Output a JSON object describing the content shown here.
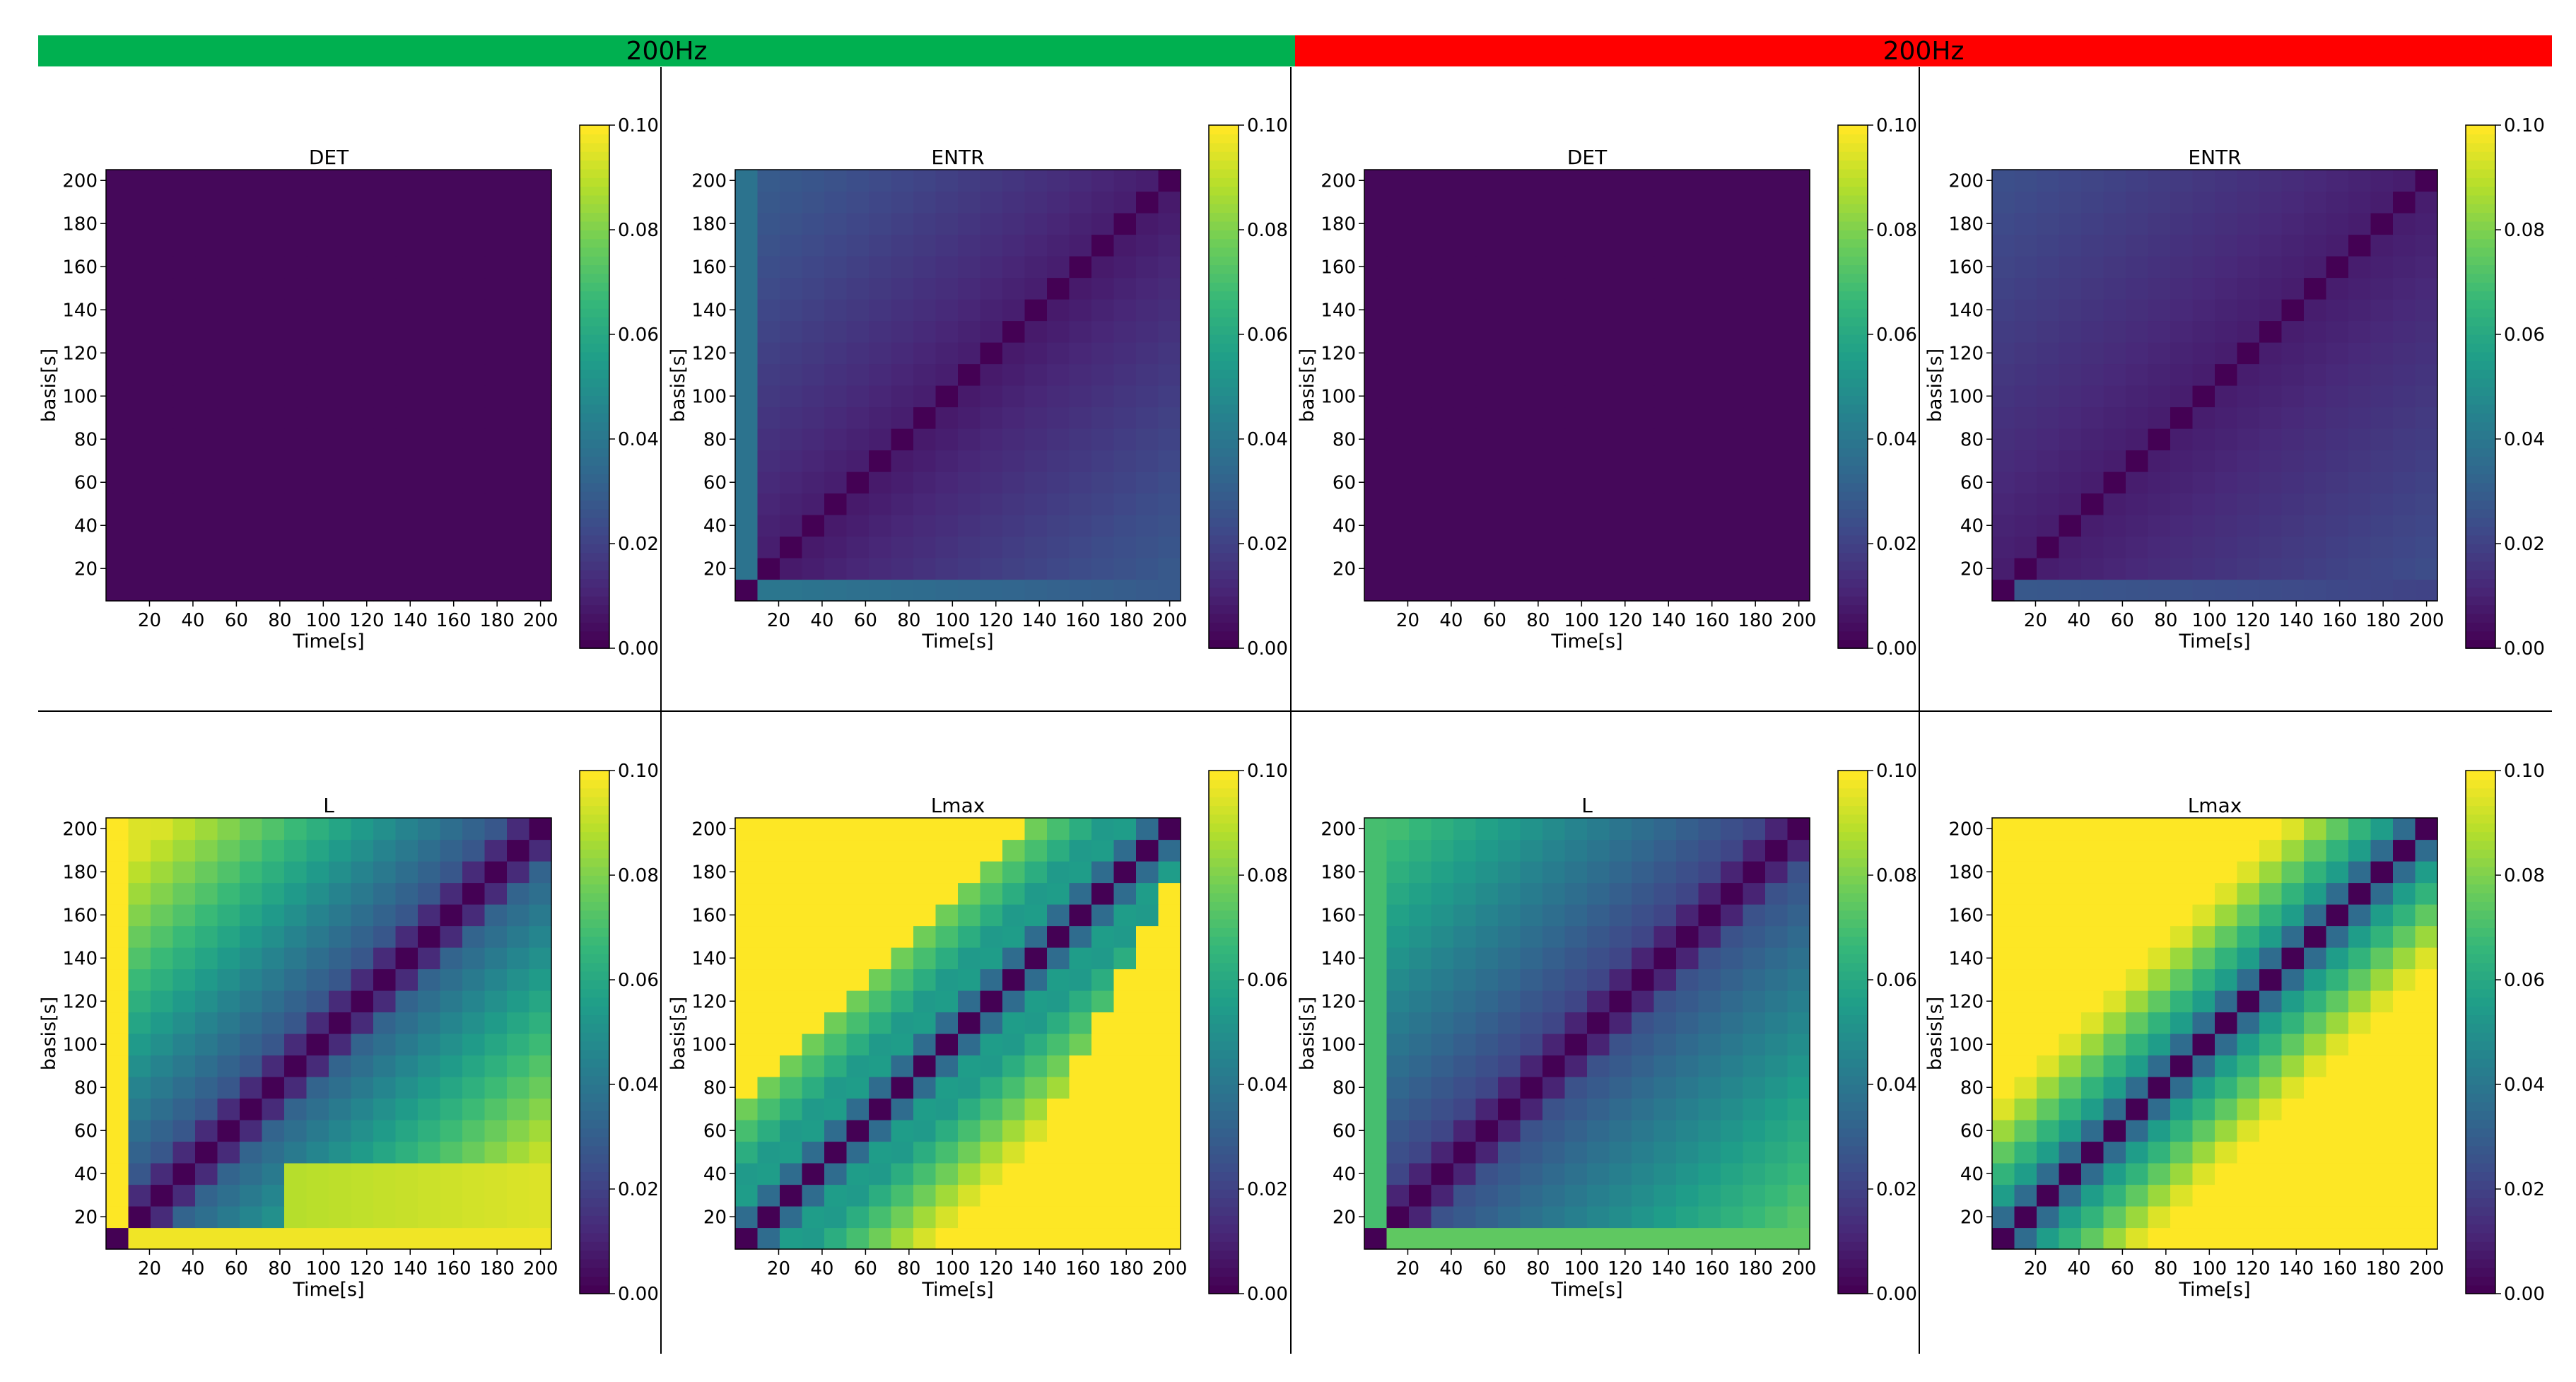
{
  "banners": [
    {
      "label": "200Hz",
      "color": "#00b050"
    },
    {
      "label": "200Hz",
      "color": "#ff0000"
    }
  ],
  "colormap": "viridis",
  "chart_data": [
    {
      "type": "heatmap",
      "title": "DET",
      "panel": "top-left",
      "banner": 0,
      "pattern": "flat",
      "xlabel": "Time[s]",
      "ylabel": "basis[s]",
      "xticks": [
        20,
        40,
        60,
        80,
        100,
        120,
        140,
        160,
        180,
        200
      ],
      "yticks": [
        20,
        40,
        60,
        80,
        100,
        120,
        140,
        160,
        180,
        200
      ],
      "xlim": [
        0,
        205
      ],
      "ylim": [
        5,
        205
      ],
      "grid_size": 20,
      "colorbar": {
        "range": [
          0.0,
          0.1
        ],
        "ticks": [
          "0.00",
          "0.02",
          "0.04",
          "0.06",
          "0.08",
          "0.10"
        ]
      }
    },
    {
      "type": "heatmap",
      "title": "ENTR",
      "panel": "top-second",
      "banner": 0,
      "pattern": "entr",
      "xlabel": "Time[s]",
      "ylabel": "basis[s]",
      "xticks": [
        20,
        40,
        60,
        80,
        100,
        120,
        140,
        160,
        180,
        200
      ],
      "yticks": [
        20,
        40,
        60,
        80,
        100,
        120,
        140,
        160,
        180,
        200
      ],
      "xlim": [
        0,
        205
      ],
      "ylim": [
        5,
        205
      ],
      "grid_size": 20,
      "colorbar": {
        "range": [
          0.0,
          0.1
        ],
        "ticks": [
          "0.00",
          "0.02",
          "0.04",
          "0.06",
          "0.08",
          "0.10"
        ]
      }
    },
    {
      "type": "heatmap",
      "title": "DET",
      "panel": "top-third",
      "banner": 1,
      "pattern": "flat",
      "xlabel": "Time[s]",
      "ylabel": "basis[s]",
      "xticks": [
        20,
        40,
        60,
        80,
        100,
        120,
        140,
        160,
        180,
        200
      ],
      "yticks": [
        20,
        40,
        60,
        80,
        100,
        120,
        140,
        160,
        180,
        200
      ],
      "xlim": [
        0,
        205
      ],
      "ylim": [
        5,
        205
      ],
      "grid_size": 20,
      "colorbar": {
        "range": [
          0.0,
          0.1
        ],
        "ticks": [
          "0.00",
          "0.02",
          "0.04",
          "0.06",
          "0.08",
          "0.10"
        ]
      }
    },
    {
      "type": "heatmap",
      "title": "ENTR",
      "panel": "top-right",
      "banner": 1,
      "pattern": "entr2",
      "xlabel": "Time[s]",
      "ylabel": "basis[s]",
      "xticks": [
        20,
        40,
        60,
        80,
        100,
        120,
        140,
        160,
        180,
        200
      ],
      "yticks": [
        20,
        40,
        60,
        80,
        100,
        120,
        140,
        160,
        180,
        200
      ],
      "xlim": [
        0,
        205
      ],
      "ylim": [
        5,
        205
      ],
      "grid_size": 20,
      "colorbar": {
        "range": [
          0.0,
          0.1
        ],
        "ticks": [
          "0.00",
          "0.02",
          "0.04",
          "0.06",
          "0.08",
          "0.10"
        ]
      }
    },
    {
      "type": "heatmap",
      "title": "L",
      "panel": "bottom-left",
      "banner": 0,
      "pattern": "L1",
      "xlabel": "Time[s]",
      "ylabel": "basis[s]",
      "xticks": [
        20,
        40,
        60,
        80,
        100,
        120,
        140,
        160,
        180,
        200
      ],
      "yticks": [
        20,
        40,
        60,
        80,
        100,
        120,
        140,
        160,
        180,
        200
      ],
      "xlim": [
        0,
        205
      ],
      "ylim": [
        5,
        205
      ],
      "grid_size": 20,
      "colorbar": {
        "range": [
          0.0,
          0.1
        ],
        "ticks": [
          "0.00",
          "0.02",
          "0.04",
          "0.06",
          "0.08",
          "0.10"
        ]
      }
    },
    {
      "type": "heatmap",
      "title": "Lmax",
      "panel": "bottom-second",
      "banner": 0,
      "pattern": "Lmax1",
      "xlabel": "Time[s]",
      "ylabel": "basis[s]",
      "xticks": [
        20,
        40,
        60,
        80,
        100,
        120,
        140,
        160,
        180,
        200
      ],
      "yticks": [
        20,
        40,
        60,
        80,
        100,
        120,
        140,
        160,
        180,
        200
      ],
      "xlim": [
        0,
        205
      ],
      "ylim": [
        5,
        205
      ],
      "grid_size": 20,
      "colorbar": {
        "range": [
          0.0,
          0.1
        ],
        "ticks": [
          "0.00",
          "0.02",
          "0.04",
          "0.06",
          "0.08",
          "0.10"
        ]
      }
    },
    {
      "type": "heatmap",
      "title": "L",
      "panel": "bottom-third",
      "banner": 1,
      "pattern": "L2",
      "xlabel": "Time[s]",
      "ylabel": "basis[s]",
      "xticks": [
        20,
        40,
        60,
        80,
        100,
        120,
        140,
        160,
        180,
        200
      ],
      "yticks": [
        20,
        40,
        60,
        80,
        100,
        120,
        140,
        160,
        180,
        200
      ],
      "xlim": [
        0,
        205
      ],
      "ylim": [
        5,
        205
      ],
      "grid_size": 20,
      "colorbar": {
        "range": [
          0.0,
          0.1
        ],
        "ticks": [
          "0.00",
          "0.02",
          "0.04",
          "0.06",
          "0.08",
          "0.10"
        ]
      }
    },
    {
      "type": "heatmap",
      "title": "Lmax",
      "panel": "bottom-right",
      "banner": 1,
      "pattern": "Lmax2",
      "xlabel": "Time[s]",
      "ylabel": "basis[s]",
      "xticks": [
        20,
        40,
        60,
        80,
        100,
        120,
        140,
        160,
        180,
        200
      ],
      "yticks": [
        20,
        40,
        60,
        80,
        100,
        120,
        140,
        160,
        180,
        200
      ],
      "xlim": [
        0,
        205
      ],
      "ylim": [
        5,
        205
      ],
      "grid_size": 20,
      "colorbar": {
        "range": [
          0.0,
          0.1
        ],
        "ticks": [
          "0.00",
          "0.02",
          "0.04",
          "0.06",
          "0.08",
          "0.10"
        ]
      }
    }
  ]
}
